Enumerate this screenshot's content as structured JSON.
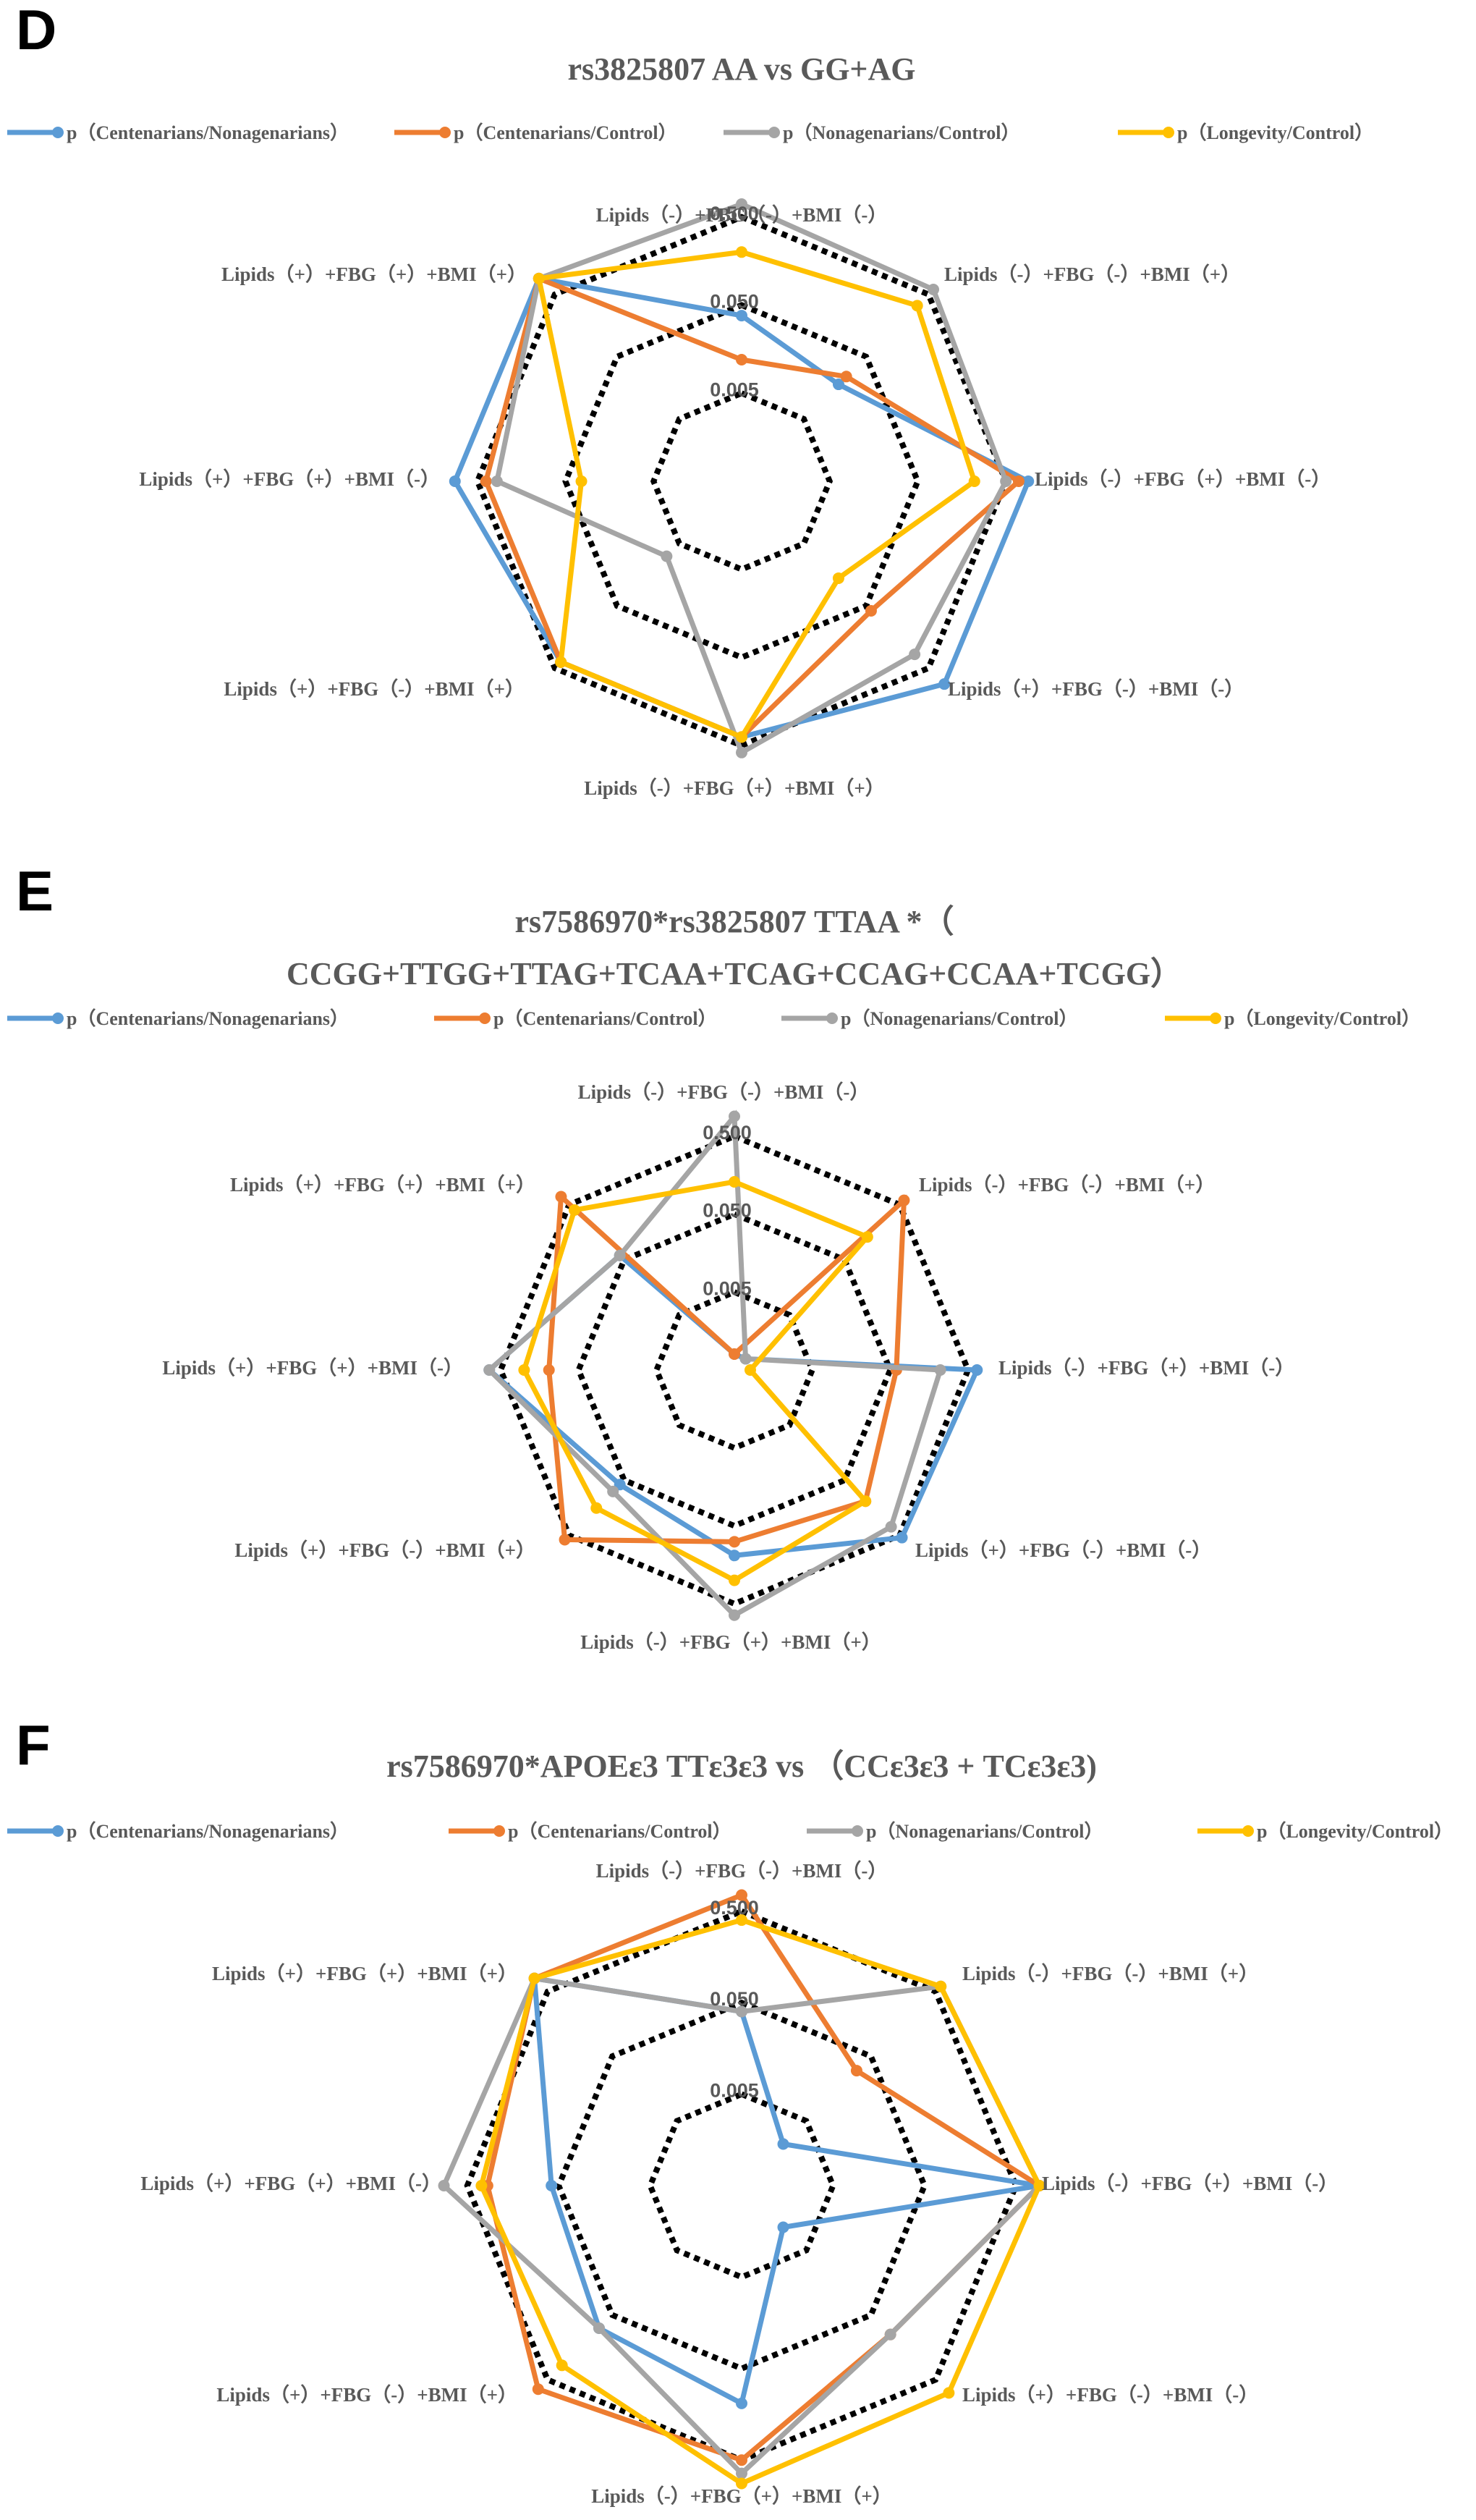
{
  "colors": {
    "blue": "#5B9BD5",
    "orange": "#ED7D31",
    "gray": "#A5A5A5",
    "yellow": "#FFC000",
    "grid": "#000000",
    "text": "#595959"
  },
  "chart_data": [
    {
      "panel": "D",
      "type": "radar",
      "scale": "log",
      "range": [
        0.0005,
        0.8
      ],
      "gridlines": [
        0.005,
        0.05,
        0.5
      ],
      "tick_labels": [
        "0.005",
        "0.050",
        "0.500"
      ],
      "title_lines": [
        "rs3825807 AA vs GG+AG"
      ],
      "categories": [
        "Lipids（-）+FBG（-）+BMI（-）",
        "Lipids（-）+FBG（-）+BMI（+）",
        "Lipids（-）+FBG（+）+BMI（-）",
        "Lipids（+）+FBG（-）+BMI（-）",
        "Lipids（-）+FBG（+）+BMI（+）",
        "Lipids（+）+FBG（-）+BMI（+）",
        "Lipids（+）+FBG（+）+BMI（-）",
        "Lipids（+）+FBG（+）+BMI（+）"
      ],
      "series": [
        {
          "name": "p（Centenarians/Nonagenarians）",
          "color": "#5B9BD5",
          "values": [
            0.038,
            0.018,
            0.9,
            0.9,
            0.4,
            0.4,
            0.9,
            0.9
          ]
        },
        {
          "name": "p（Centenarians/Control）",
          "color": "#ED7D31",
          "values": [
            0.012,
            0.024,
            0.7,
            0.06,
            0.4,
            0.4,
            0.4,
            0.9
          ]
        },
        {
          "name": "p（Nonagenarians/Control）",
          "color": "#A5A5A5",
          "values": [
            0.7,
            0.6,
            0.5,
            0.3,
            0.6,
            0.008,
            0.3,
            0.9
          ]
        },
        {
          "name": "p（Longevity/Control）",
          "color": "#FFC000",
          "values": [
            0.2,
            0.33,
            0.22,
            0.018,
            0.4,
            0.4,
            0.033,
            0.9
          ]
        }
      ]
    },
    {
      "panel": "E",
      "type": "radar",
      "scale": "log",
      "range": [
        0.0005,
        0.8
      ],
      "gridlines": [
        0.005,
        0.05,
        0.5
      ],
      "tick_labels": [
        "0.005",
        "0.050",
        "0.500"
      ],
      "title_lines": [
        "rs7586970*rs3825807 TTAA *（",
        "CCGG+TTGG+TTAG+TCAA+TCAG+CCAG+CCAA+TCGG）"
      ],
      "categories": [
        "Lipids（-）+FBG（-）+BMI（-）",
        "Lipids（-）+FBG（-）+BMI（+）",
        "Lipids（-）+FBG（+）+BMI（-）",
        "Lipids（+）+FBG（-）+BMI（-）",
        "Lipids（-）+FBG（+）+BMI（+）",
        "Lipids（+）+FBG（-）+BMI（+）",
        "Lipids（+）+FBG（+）+BMI（-）",
        "Lipids（+）+FBG（+）+BMI（+）"
      ],
      "series": [
        {
          "name": "p（Centenarians/Nonagenarians）",
          "color": "#5B9BD5",
          "values": [
            0.0008,
            0.0008,
            0.65,
            0.55,
            0.12,
            0.06,
            0.7,
            0.06
          ]
        },
        {
          "name": "p（Centenarians/Control）",
          "color": "#ED7D31",
          "values": [
            0.0008,
            0.6,
            0.06,
            0.12,
            0.08,
            0.6,
            0.12,
            0.7
          ]
        },
        {
          "name": "p（Nonagenarians/Control）",
          "color": "#A5A5A5",
          "values": [
            0.9,
            0.0008,
            0.22,
            0.35,
            0.7,
            0.08,
            0.7,
            0.06
          ]
        },
        {
          "name": "p（Longevity/Control）",
          "color": "#FFC000",
          "values": [
            0.13,
            0.13,
            0.0008,
            0.12,
            0.25,
            0.16,
            0.25,
            0.4
          ]
        }
      ]
    },
    {
      "panel": "F",
      "type": "radar",
      "scale": "log",
      "range": [
        0.0005,
        0.8
      ],
      "gridlines": [
        0.005,
        0.05,
        0.5
      ],
      "tick_labels": [
        "0.005",
        "0.050",
        "0.500"
      ],
      "title_lines": [
        "rs7586970*APOEε3 TTε3ε3 vs （CCε3ε3 + TCε3ε3)"
      ],
      "categories": [
        "Lipids（-）+FBG（-）+BMI（-）",
        "Lipids（-）+FBG（-）+BMI（+）",
        "Lipids（-）+FBG（+）+BMI（-）",
        "Lipids（+）+FBG（-）+BMI（-）",
        "Lipids（-）+FBG（+）+BMI（+）",
        "Lipids（+）+FBG（-）+BMI（+）",
        "Lipids（+）+FBG（+）+BMI（-）",
        "Lipids（+）+FBG（+）+BMI（+）"
      ],
      "series": [
        {
          "name": "p（Centenarians/Nonagenarians）",
          "color": "#5B9BD5",
          "values": [
            0.04,
            0.0022,
            0.9,
            0.0022,
            0.12,
            0.08,
            0.06,
            0.8
          ]
        },
        {
          "name": "p（Centenarians/Control）",
          "color": "#ED7D31",
          "values": [
            0.75,
            0.03,
            0.9,
            0.1,
            0.5,
            0.7,
            0.3,
            0.8
          ]
        },
        {
          "name": "p（Nonagenarians/Control）",
          "color": "#A5A5A5",
          "values": [
            0.04,
            0.6,
            0.9,
            0.1,
            0.7,
            0.08,
            0.9,
            0.8
          ]
        },
        {
          "name": "p（Longevity/Control）",
          "color": "#FFC000",
          "values": [
            0.4,
            0.6,
            0.9,
            0.8,
            0.9,
            0.3,
            0.35,
            0.8
          ]
        }
      ]
    }
  ]
}
